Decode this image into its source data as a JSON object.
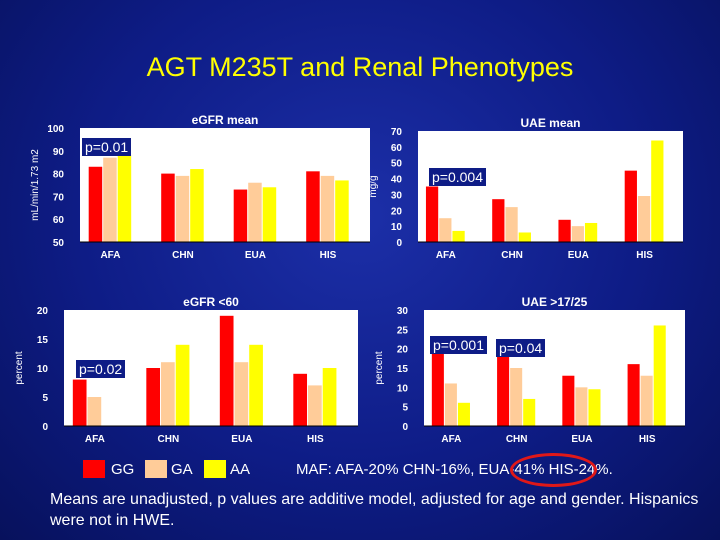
{
  "title": "AGT M235T and Renal Phenotypes",
  "colors": {
    "GG": "#ff0000",
    "GA": "#ffcc99",
    "AA": "#ffff00",
    "white_bg": "#ffffff",
    "highlight": "#e01818"
  },
  "legend": [
    {
      "key": "GG",
      "label": "GG"
    },
    {
      "key": "GA",
      "label": "GA"
    },
    {
      "key": "AA",
      "label": "AA"
    }
  ],
  "maf_text": "MAF: AFA-20% CHN-16%, EUA-41% HIS-24%.",
  "note": "Means are unadjusted, p values are additive model, adjusted for age and gender. Hispanics were not in HWE.",
  "pvalues": {
    "egfr_mean": "p=0.01",
    "uae_mean": "p=0.004",
    "egfr_lt60": "p=0.02",
    "uae_gt17_a": "p=0.001",
    "uae_gt17_b": "p=0.04"
  },
  "chart_data": [
    {
      "id": "egfr_mean",
      "type": "bar",
      "title": "eGFR mean",
      "ylabel": "mL/min/1.73 m2",
      "xlabel": "",
      "ylim": [
        50,
        100
      ],
      "yticks": [
        "50",
        "60",
        "70",
        "80",
        "90",
        "100"
      ],
      "categories": [
        "AFA",
        "CHN",
        "EUA",
        "HIS"
      ],
      "series": [
        {
          "name": "GG",
          "values": [
            83,
            80,
            73,
            81
          ]
        },
        {
          "name": "GA",
          "values": [
            87,
            79,
            76,
            79
          ]
        },
        {
          "name": "AA",
          "values": [
            88,
            82,
            74,
            77
          ]
        }
      ]
    },
    {
      "id": "uae_mean",
      "type": "bar",
      "title": "UAE mean",
      "ylabel": "mg/g",
      "xlabel": "",
      "ylim": [
        0,
        70
      ],
      "yticks": [
        "0",
        "10",
        "20",
        "30",
        "40",
        "50",
        "60",
        "70"
      ],
      "categories": [
        "AFA",
        "CHN",
        "EUA",
        "HIS"
      ],
      "series": [
        {
          "name": "GG",
          "values": [
            35,
            27,
            14,
            45
          ]
        },
        {
          "name": "GA",
          "values": [
            15,
            22,
            10,
            29
          ]
        },
        {
          "name": "AA",
          "values": [
            7,
            6,
            12,
            64
          ]
        }
      ]
    },
    {
      "id": "egfr_lt60",
      "type": "bar",
      "title": "eGFR <60",
      "ylabel": "percent",
      "xlabel": "",
      "ylim": [
        0,
        20
      ],
      "yticks": [
        "0",
        "5",
        "10",
        "15",
        "20"
      ],
      "categories": [
        "AFA",
        "CHN",
        "EUA",
        "HIS"
      ],
      "series": [
        {
          "name": "GG",
          "values": [
            8,
            10,
            19,
            9
          ]
        },
        {
          "name": "GA",
          "values": [
            5,
            11,
            11,
            7
          ]
        },
        {
          "name": "AA",
          "values": [
            0,
            14,
            14,
            10
          ]
        }
      ]
    },
    {
      "id": "uae_gt17",
      "type": "bar",
      "title": "UAE >17/25",
      "ylabel": "percent",
      "xlabel": "",
      "ylim": [
        0,
        30
      ],
      "yticks": [
        "0",
        "5",
        "10",
        "15",
        "20",
        "25",
        "30"
      ],
      "categories": [
        "AFA",
        "CHN",
        "EUA",
        "HIS"
      ],
      "series": [
        {
          "name": "GG",
          "values": [
            19,
            18,
            13,
            16
          ]
        },
        {
          "name": "GA",
          "values": [
            11,
            15,
            10,
            13
          ]
        },
        {
          "name": "AA",
          "values": [
            6,
            7,
            9.5,
            26
          ]
        }
      ]
    }
  ]
}
